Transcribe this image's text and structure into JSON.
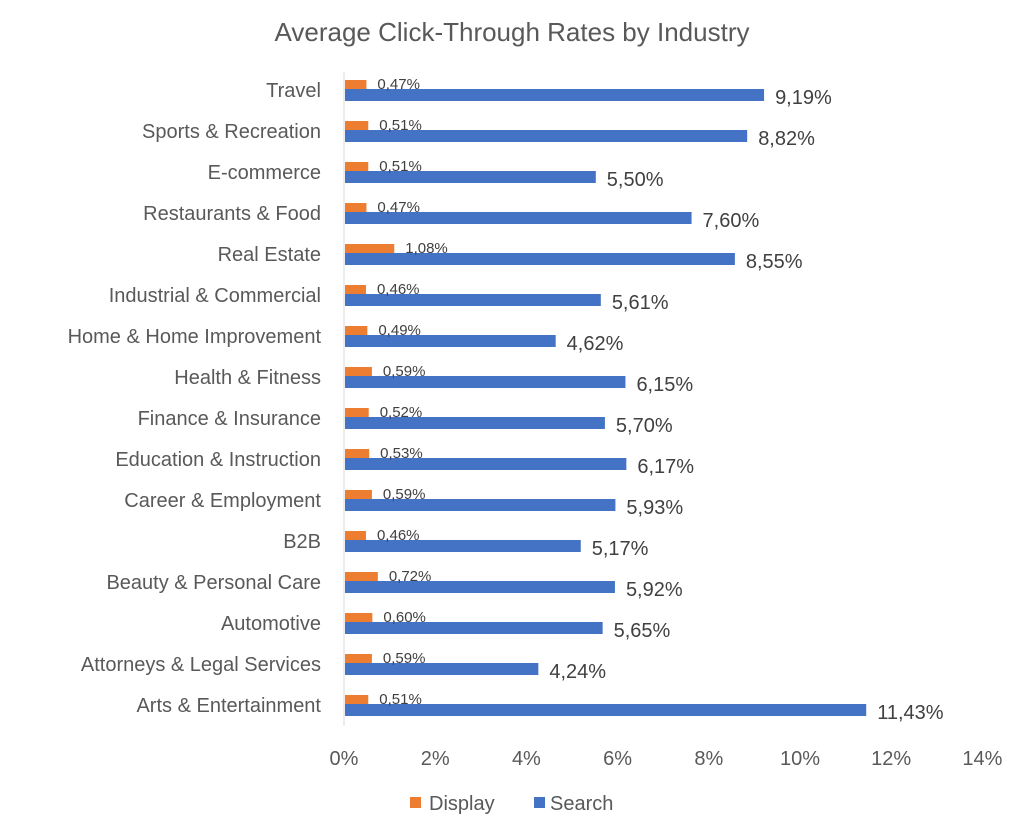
{
  "chart_data": {
    "type": "bar",
    "orientation": "horizontal",
    "title": "Average Click-Through Rates by Industry",
    "xlabel": "",
    "ylabel": "",
    "xlim": [
      0,
      14
    ],
    "x_ticks": [
      "0%",
      "2%",
      "4%",
      "6%",
      "8%",
      "10%",
      "12%",
      "14%"
    ],
    "grid": false,
    "legend_position": "bottom",
    "categories": [
      "Travel",
      "Sports & Recreation",
      "E-commerce",
      "Restaurants & Food",
      "Real Estate",
      "Industrial & Commercial",
      "Home & Home Improvement",
      "Health & Fitness",
      "Finance & Insurance",
      "Education & Instruction",
      "Career & Employment",
      "B2B",
      "Beauty & Personal Care",
      "Automotive",
      "Attorneys & Legal Services",
      "Arts & Entertainment"
    ],
    "series": [
      {
        "name": "Display",
        "color": "#ED7D31",
        "values": [
          0.47,
          0.51,
          0.51,
          0.47,
          1.08,
          0.46,
          0.49,
          0.59,
          0.52,
          0.53,
          0.59,
          0.46,
          0.72,
          0.6,
          0.59,
          0.51
        ],
        "labels": [
          "0,47%",
          "0,51%",
          "0,51%",
          "0,47%",
          "1,08%",
          "0,46%",
          "0,49%",
          "0,59%",
          "0,52%",
          "0,53%",
          "0,59%",
          "0,46%",
          "0,72%",
          "0,60%",
          "0,59%",
          "0,51%"
        ]
      },
      {
        "name": "Search",
        "color": "#4472C4",
        "values": [
          9.19,
          8.82,
          5.5,
          7.6,
          8.55,
          5.61,
          4.62,
          6.15,
          5.7,
          6.17,
          5.93,
          5.17,
          5.92,
          5.65,
          4.24,
          11.43
        ],
        "labels": [
          "9,19%",
          "8,82%",
          "5,50%",
          "7,60%",
          "8,55%",
          "5,61%",
          "4,62%",
          "6,15%",
          "5,70%",
          "6,17%",
          "5,93%",
          "5,17%",
          "5,92%",
          "5,65%",
          "4,24%",
          "11,43%"
        ]
      }
    ]
  },
  "legend": {
    "display_label": "Display",
    "search_label": "Search"
  },
  "colors": {
    "display": "#ED7D31",
    "search": "#4472C4",
    "axis": "#D9D9D9",
    "text": "#595959"
  }
}
